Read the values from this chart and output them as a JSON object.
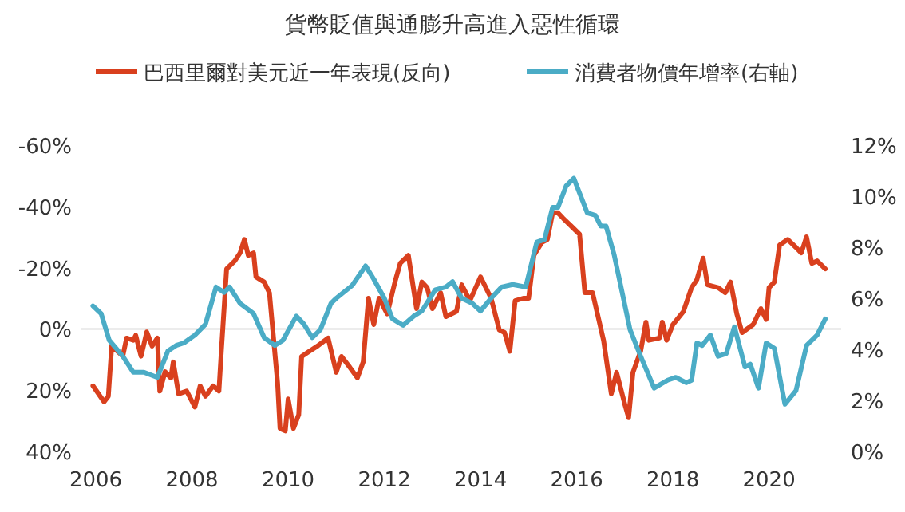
{
  "chart_data": {
    "type": "line",
    "title": "貨幣貶值與通膨升高進入惡性循環",
    "legend": "top",
    "line_style": "solid",
    "xlim": [
      2005.7,
      2021.5
    ],
    "xticks": [
      2006,
      2008,
      2010,
      2012,
      2014,
      2016,
      2018,
      2020
    ],
    "ylim": [
      40,
      -60
    ],
    "yticks": [
      {
        "value": -60,
        "label": "-60%"
      },
      {
        "value": -40,
        "label": "-40%"
      },
      {
        "value": -20,
        "label": "-20%"
      },
      {
        "value": 0,
        "label": "0%"
      },
      {
        "value": 20,
        "label": "20%"
      },
      {
        "value": 40,
        "label": "40%"
      }
    ],
    "y2lim": [
      0,
      12
    ],
    "y2ticks": [
      {
        "value": 0,
        "label": "0%"
      },
      {
        "value": 2,
        "label": "2%"
      },
      {
        "value": 4,
        "label": "4%"
      },
      {
        "value": 6,
        "label": "6%"
      },
      {
        "value": 8,
        "label": "8%"
      },
      {
        "value": 10,
        "label": "10%"
      },
      {
        "value": 12,
        "label": "12%"
      }
    ],
    "ref_lines": [
      {
        "axis": "y",
        "value": 0,
        "color": "#d9d9d9"
      }
    ],
    "series": [
      {
        "name": "巴西里爾對美元近一年表現(反向)",
        "color": "#d9401e",
        "x": [
          2005.94,
          2006.17,
          2006.26,
          2006.33,
          2006.56,
          2006.64,
          2006.78,
          2006.83,
          2006.94,
          2007.06,
          2007.17,
          2007.28,
          2007.33,
          2007.44,
          2007.56,
          2007.61,
          2007.72,
          2007.89,
          2008.06,
          2008.17,
          2008.28,
          2008.44,
          2008.56,
          2008.61,
          2008.72,
          2008.89,
          2009.0,
          2009.09,
          2009.17,
          2009.28,
          2009.33,
          2009.5,
          2009.61,
          2009.78,
          2009.83,
          2009.94,
          2010.0,
          2010.11,
          2010.22,
          2010.28,
          2010.44,
          2010.61,
          2010.83,
          2011.0,
          2011.11,
          2011.28,
          2011.44,
          2011.56,
          2011.67,
          2011.78,
          2011.89,
          2012.06,
          2012.22,
          2012.33,
          2012.5,
          2012.67,
          2012.78,
          2012.89,
          2013.0,
          2013.17,
          2013.28,
          2013.5,
          2013.61,
          2013.78,
          2014.0,
          2014.22,
          2014.39,
          2014.5,
          2014.61,
          2014.72,
          2014.89,
          2015.0,
          2015.11,
          2015.28,
          2015.39,
          2015.5,
          2015.61,
          2015.72,
          2015.89,
          2016.06,
          2016.17,
          2016.33,
          2016.56,
          2016.72,
          2016.83,
          2017.0,
          2017.08,
          2017.17,
          2017.33,
          2017.44,
          2017.5,
          2017.72,
          2017.78,
          2017.87,
          2018.0,
          2018.22,
          2018.39,
          2018.5,
          2018.63,
          2018.72,
          2018.94,
          2019.09,
          2019.2,
          2019.33,
          2019.44,
          2019.67,
          2019.83,
          2019.94,
          2020.0,
          2020.11,
          2020.22,
          2020.39,
          2020.56,
          2020.67,
          2020.78,
          2020.89,
          2021.0,
          2021.17
        ],
        "values": [
          18.6,
          23.8,
          22,
          5.6,
          8.9,
          3,
          3.7,
          2.1,
          8.9,
          1,
          5.6,
          3,
          20.3,
          14,
          16,
          10.8,
          21.2,
          20.3,
          25.5,
          18.6,
          22,
          18.6,
          20.3,
          7.3,
          -19.6,
          -22.2,
          -24.8,
          -29.2,
          -24,
          -24.8,
          -17,
          -15.3,
          -11.8,
          17.7,
          32.5,
          33.3,
          22.9,
          32.5,
          28,
          9,
          7.3,
          5.6,
          3,
          14.2,
          9,
          12.5,
          16,
          10.8,
          -10,
          -1.4,
          -10,
          -4.9,
          -15.3,
          -21.4,
          -24,
          -6.6,
          -15.3,
          -13.5,
          -6.6,
          -11.8,
          -4,
          -5.7,
          -14.4,
          -9.2,
          -17,
          -10,
          0.3,
          1.2,
          7.3,
          -9.2,
          -10,
          -10,
          -24,
          -28.3,
          -29.2,
          -37.9,
          -37.9,
          -36.1,
          -33.5,
          -30.9,
          -11.8,
          -11.8,
          3.8,
          21.2,
          14.2,
          24.6,
          29,
          14.2,
          7.3,
          -2.2,
          3.7,
          3,
          -2.2,
          3.7,
          -1.4,
          -5.7,
          -13.5,
          -16.1,
          -23.1,
          -14.4,
          -13.5,
          -11.8,
          -15.3,
          -4.9,
          1.2,
          -1.4,
          -6.6,
          -3.1,
          -13.5,
          -15.3,
          -27.4,
          -29.2,
          -26.6,
          -24.8,
          -30,
          -21.4,
          -22.2,
          -19.6
        ]
      },
      {
        "name": "消費者物價年增率(右軸)",
        "color": "#4bacc6",
        "axis": "y2",
        "x": [
          2005.94,
          2006.11,
          2006.28,
          2006.56,
          2006.78,
          2007.0,
          2007.28,
          2007.5,
          2007.67,
          2007.83,
          2008.06,
          2008.28,
          2008.5,
          2008.67,
          2008.78,
          2009.0,
          2009.28,
          2009.5,
          2009.72,
          2009.89,
          2010.17,
          2010.33,
          2010.5,
          2010.67,
          2010.89,
          2011.0,
          2011.33,
          2011.61,
          2011.78,
          2012.0,
          2012.17,
          2012.39,
          2012.61,
          2012.78,
          2013.06,
          2013.28,
          2013.42,
          2013.61,
          2013.83,
          2014.0,
          2014.22,
          2014.44,
          2014.67,
          2014.94,
          2015.17,
          2015.33,
          2015.5,
          2015.61,
          2015.78,
          2015.94,
          2016.22,
          2016.39,
          2016.5,
          2016.61,
          2016.78,
          2017.11,
          2017.33,
          2017.61,
          2017.89,
          2018.06,
          2018.28,
          2018.39,
          2018.5,
          2018.61,
          2018.78,
          2018.94,
          2019.11,
          2019.28,
          2019.5,
          2019.61,
          2019.78,
          2019.94,
          2020.11,
          2020.33,
          2020.56,
          2020.78,
          2021.0,
          2021.17
        ],
        "values": [
          5.7,
          5.4,
          4.35,
          3.73,
          3.1,
          3.1,
          2.9,
          3.94,
          4.15,
          4.25,
          4.56,
          4.98,
          6.44,
          6.23,
          6.44,
          5.8,
          5.4,
          4.46,
          4.15,
          4.35,
          5.3,
          4.98,
          4.46,
          4.77,
          5.8,
          6.0,
          6.5,
          7.27,
          6.75,
          6.0,
          5.19,
          4.94,
          5.3,
          5.5,
          6.33,
          6.44,
          6.65,
          6.0,
          5.8,
          5.5,
          6.0,
          6.44,
          6.54,
          6.44,
          8.2,
          8.3,
          9.56,
          9.56,
          10.4,
          10.7,
          9.35,
          9.25,
          8.83,
          8.83,
          7.7,
          4.77,
          3.73,
          2.48,
          2.79,
          2.9,
          2.69,
          2.79,
          4.25,
          4.15,
          4.56,
          3.73,
          3.83,
          4.88,
          3.31,
          3.42,
          2.48,
          4.25,
          4.04,
          1.85,
          2.38,
          4.15,
          4.56,
          5.19
        ]
      }
    ]
  }
}
